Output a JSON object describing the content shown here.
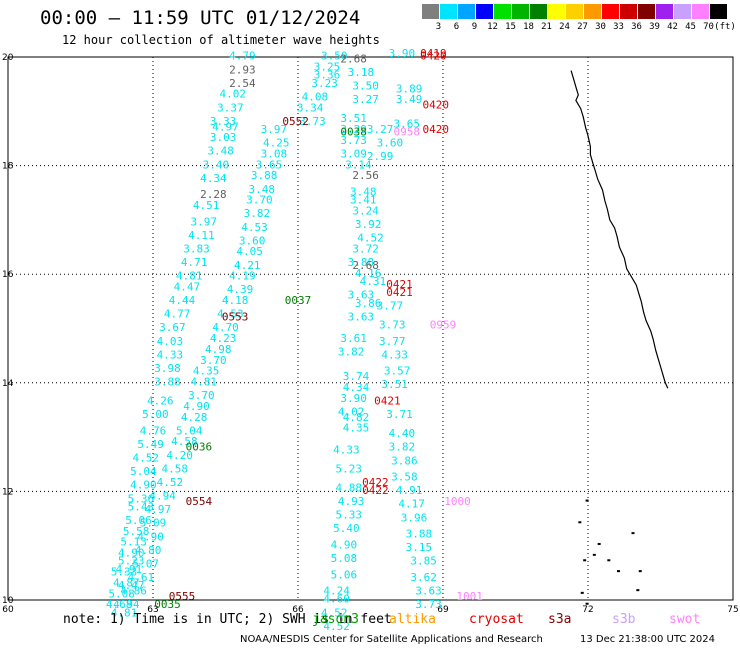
{
  "title": "00:00 – 11:59 UTC 01/12/2024",
  "subtitle": "12 hour collection of altimeter wave heights",
  "color_scale": {
    "unit_label": "(ft)",
    "bins": [
      {
        "label": "3",
        "color": "#7f7f7f"
      },
      {
        "label": "6",
        "color": "#00e5ff"
      },
      {
        "label": "9",
        "color": "#00a5ff"
      },
      {
        "label": "12",
        "color": "#0000ff"
      },
      {
        "label": "15",
        "color": "#00e000"
      },
      {
        "label": "18",
        "color": "#00b400"
      },
      {
        "label": "21",
        "color": "#008000"
      },
      {
        "label": "24",
        "color": "#ffff00"
      },
      {
        "label": "27",
        "color": "#ffd000"
      },
      {
        "label": "30",
        "color": "#ff9900"
      },
      {
        "label": "33",
        "color": "#ff0000"
      },
      {
        "label": "36",
        "color": "#cc0000"
      },
      {
        "label": "39",
        "color": "#800000"
      },
      {
        "label": "42",
        "color": "#a020f0"
      },
      {
        "label": "45",
        "color": "#c8a0ff"
      },
      {
        "label": "70",
        "color": "#ff80ff"
      },
      {
        "label": "",
        "color": "#000000"
      }
    ]
  },
  "axes": {
    "x_ticks": [
      "60",
      "63",
      "66",
      "69",
      "72",
      "75"
    ],
    "y_ticks": [
      "10",
      "12",
      "14",
      "16",
      "18",
      "20"
    ]
  },
  "colors": {
    "cyan": "#00e5ee",
    "gray": "#606060",
    "green": "#007f00",
    "maroon": "#7f0000",
    "red": "#e00000",
    "pink": "#ff80ff"
  },
  "tracks": [
    {
      "color": "cyan",
      "labels": [
        [
          "4.79",
          64.85,
          19.95
        ],
        [
          "4.02",
          64.65,
          19.25
        ],
        [
          "3.37",
          64.6,
          19.0
        ],
        [
          "3.33",
          64.45,
          18.75
        ],
        [
          "4.97",
          64.5,
          18.65
        ],
        [
          "3.03",
          64.45,
          18.45
        ],
        [
          "3.48",
          64.4,
          18.2
        ],
        [
          "3.40",
          64.3,
          17.95
        ],
        [
          "4.34",
          64.25,
          17.7
        ],
        [
          "4.51",
          64.1,
          17.2
        ],
        [
          "3.97",
          64.05,
          16.9
        ],
        [
          "4.11",
          64.0,
          16.65
        ],
        [
          "3.83",
          63.9,
          16.4
        ],
        [
          "4.71",
          63.85,
          16.15
        ],
        [
          "4.81",
          63.75,
          15.9
        ],
        [
          "4.47",
          63.7,
          15.7
        ],
        [
          "4.44",
          63.6,
          15.45
        ],
        [
          "4.77",
          63.5,
          15.2
        ],
        [
          "3.67",
          63.4,
          14.95
        ],
        [
          "4.03",
          63.35,
          14.7
        ],
        [
          "4.33",
          63.35,
          14.45
        ],
        [
          "3.98",
          63.3,
          14.2
        ],
        [
          "3.88",
          63.3,
          13.95
        ],
        [
          "4.26",
          63.15,
          13.6
        ],
        [
          "5.00",
          63.05,
          13.35
        ],
        [
          "4.76",
          63.0,
          13.05
        ],
        [
          "5.49",
          62.95,
          12.8
        ],
        [
          "4.52",
          62.85,
          12.55
        ],
        [
          "5.04",
          62.8,
          12.3
        ],
        [
          "4.90",
          62.8,
          12.05
        ],
        [
          "5.36",
          62.75,
          11.8
        ],
        [
          "5.43",
          62.75,
          11.65
        ],
        [
          "5.06",
          62.7,
          11.4
        ],
        [
          "5.58",
          62.65,
          11.2
        ],
        [
          "5.13",
          62.6,
          11.0
        ],
        [
          "4.90",
          62.55,
          10.8
        ],
        [
          "5.23",
          62.55,
          10.65
        ],
        [
          "4.91",
          62.5,
          10.5
        ],
        [
          "4.87",
          62.45,
          10.25
        ],
        [
          "5.08",
          62.35,
          10.05
        ],
        [
          "4.68",
          62.3,
          9.85
        ]
      ]
    },
    {
      "color": "gray",
      "labels": [
        [
          "2.93",
          64.85,
          19.7
        ],
        [
          "2.54",
          64.85,
          19.45
        ],
        [
          "2.28",
          64.25,
          17.4
        ]
      ]
    },
    {
      "color": "cyan",
      "labels": [
        [
          "3.97",
          65.5,
          18.6
        ],
        [
          "4.25",
          65.55,
          18.35
        ],
        [
          "3.08",
          65.5,
          18.15
        ],
        [
          "3.65",
          65.4,
          17.95
        ],
        [
          "3.88",
          65.3,
          17.75
        ],
        [
          "3.48",
          65.25,
          17.5
        ],
        [
          "3.70",
          65.2,
          17.3
        ],
        [
          "3.82",
          65.15,
          17.05
        ],
        [
          "4.53",
          65.1,
          16.8
        ],
        [
          "3.60",
          65.05,
          16.55
        ],
        [
          "4.05",
          65.0,
          16.35
        ],
        [
          "4.21",
          64.95,
          16.1
        ],
        [
          "4.19",
          64.85,
          15.9
        ],
        [
          "4.39",
          64.8,
          15.65
        ],
        [
          "4.18",
          64.7,
          15.45
        ],
        [
          "4.53",
          64.6,
          15.2
        ],
        [
          "4.70",
          64.5,
          14.95
        ],
        [
          "4.23",
          64.45,
          14.75
        ],
        [
          "4.98",
          64.35,
          14.55
        ],
        [
          "3.70",
          64.25,
          14.35
        ],
        [
          "4.35",
          64.1,
          14.15
        ],
        [
          "4.81",
          64.05,
          13.95
        ],
        [
          "3.70",
          64.0,
          13.7
        ],
        [
          "4.90",
          63.9,
          13.5
        ],
        [
          "4.28",
          63.85,
          13.3
        ],
        [
          "5.04",
          63.75,
          13.05
        ],
        [
          "4.58",
          63.65,
          12.85
        ],
        [
          "4.20",
          63.55,
          12.6
        ],
        [
          "4.58",
          63.45,
          12.35
        ],
        [
          "4.52",
          63.35,
          12.1
        ],
        [
          "4.94",
          63.2,
          11.85
        ],
        [
          "4.97",
          63.1,
          11.6
        ],
        [
          "5.09",
          63.0,
          11.35
        ],
        [
          "4.90",
          62.95,
          11.1
        ],
        [
          "4.80",
          62.9,
          10.85
        ],
        [
          "5.07",
          62.85,
          10.6
        ],
        [
          "4.61",
          62.75,
          10.35
        ],
        [
          "4.86",
          62.6,
          10.1
        ],
        [
          "4.94",
          62.45,
          9.85
        ],
        [
          "4.81",
          62.4,
          9.7
        ],
        [
          "4.47",
          62.55,
          10.2
        ],
        [
          "5.33",
          62.4,
          10.45
        ]
      ]
    },
    {
      "color": "cyan",
      "labels": [
        [
          "3.50",
          66.75,
          19.95
        ],
        [
          "3.25",
          66.6,
          19.75
        ],
        [
          "3.36",
          66.6,
          19.6
        ],
        [
          "3.23",
          66.55,
          19.45
        ],
        [
          "4.08",
          66.35,
          19.2
        ],
        [
          "3.34",
          66.25,
          19.0
        ],
        [
          "3.73",
          66.3,
          18.75
        ],
        [
          "3.51",
          67.15,
          18.8
        ],
        [
          "3.29",
          67.15,
          18.6
        ],
        [
          "3.73",
          67.15,
          18.4
        ],
        [
          "3.09",
          67.15,
          18.15
        ],
        [
          "3.14",
          67.25,
          17.95
        ],
        [
          "3.48",
          67.35,
          17.45
        ],
        [
          "3.41",
          67.35,
          17.3
        ],
        [
          "3.24",
          67.4,
          17.1
        ],
        [
          "3.92",
          67.45,
          16.85
        ],
        [
          "4.52",
          67.5,
          16.6
        ],
        [
          "3.72",
          67.4,
          16.4
        ],
        [
          "3.88",
          67.3,
          16.15
        ],
        [
          "4.16",
          67.45,
          15.95
        ],
        [
          "4.31",
          67.55,
          15.8
        ],
        [
          "3.63",
          67.3,
          15.55
        ],
        [
          "3.86",
          67.45,
          15.4
        ],
        [
          "3.63",
          67.3,
          15.15
        ],
        [
          "3.61",
          67.15,
          14.75
        ],
        [
          "3.82",
          67.1,
          14.5
        ],
        [
          "3.74",
          67.2,
          14.05
        ],
        [
          "4.34",
          67.2,
          13.85
        ],
        [
          "3.90",
          67.15,
          13.65
        ],
        [
          "4.02",
          67.1,
          13.4
        ],
        [
          "4.82",
          67.2,
          13.3
        ],
        [
          "4.35",
          67.2,
          13.1
        ],
        [
          "4.33",
          67.0,
          12.7
        ],
        [
          "5.23",
          67.05,
          12.35
        ],
        [
          "4.88",
          67.05,
          12.0
        ],
        [
          "4.93",
          67.1,
          11.75
        ],
        [
          "5.33",
          67.05,
          11.5
        ],
        [
          "5.40",
          67.0,
          11.25
        ],
        [
          "4.90",
          66.95,
          10.95
        ],
        [
          "5.08",
          66.95,
          10.7
        ],
        [
          "5.06",
          66.95,
          10.4
        ],
        [
          "4.24",
          66.8,
          10.1
        ],
        [
          "4.60",
          66.8,
          9.95
        ],
        [
          "4.52",
          66.75,
          9.7
        ],
        [
          "4.52",
          66.8,
          9.45
        ]
      ]
    },
    {
      "color": "gray",
      "labels": [
        [
          "2.68",
          67.15,
          19.9
        ],
        [
          "2.68",
          67.4,
          16.1
        ],
        [
          "2.56",
          67.4,
          17.75
        ]
      ]
    },
    {
      "color": "cyan",
      "labels": [
        [
          "3.18",
          67.3,
          19.65
        ],
        [
          "3.50",
          67.4,
          19.4
        ],
        [
          "3.27",
          67.4,
          19.15
        ],
        [
          "3.27",
          67.7,
          18.6
        ],
        [
          "3.60",
          67.9,
          18.35
        ],
        [
          "2.99",
          67.7,
          18.1
        ],
        [
          "3.77",
          67.9,
          15.35
        ],
        [
          "3.73",
          67.95,
          15.0
        ],
        [
          "3.77",
          67.95,
          14.7
        ],
        [
          "4.33",
          68.0,
          14.45
        ],
        [
          "3.57",
          68.05,
          14.15
        ],
        [
          "3.51",
          68.0,
          13.9
        ],
        [
          "3.71",
          68.1,
          13.35
        ],
        [
          "4.40",
          68.15,
          13.0
        ],
        [
          "3.82",
          68.15,
          12.75
        ],
        [
          "3.86",
          68.2,
          12.5
        ],
        [
          "3.58",
          68.2,
          12.2
        ],
        [
          "4.91",
          68.3,
          11.95
        ],
        [
          "4.17",
          68.35,
          11.7
        ],
        [
          "3.96",
          68.4,
          11.45
        ],
        [
          "3.88",
          68.5,
          11.15
        ],
        [
          "3.15",
          68.5,
          10.9
        ],
        [
          "3.85",
          68.6,
          10.65
        ],
        [
          "3.62",
          68.6,
          10.35
        ],
        [
          "3.63",
          68.7,
          10.1
        ],
        [
          "3.73",
          68.7,
          9.85
        ],
        [
          "3.89",
          68.3,
          19.35
        ],
        [
          "3.49",
          68.3,
          19.15
        ],
        [
          "3.65",
          68.25,
          18.7
        ],
        [
          "3.90",
          68.15,
          20.0
        ]
      ]
    },
    {
      "color": "green",
      "labels": [
        [
          "0037",
          66.0,
          15.45
        ],
        [
          "0036",
          63.95,
          12.75
        ],
        [
          "0035",
          63.3,
          9.85
        ],
        [
          "0038",
          67.15,
          18.55
        ]
      ]
    },
    {
      "color": "maroon",
      "labels": [
        [
          "0552",
          65.95,
          18.75
        ],
        [
          "0553",
          64.7,
          15.15
        ],
        [
          "0554",
          63.95,
          11.75
        ],
        [
          "0555",
          63.6,
          10.0
        ]
      ]
    },
    {
      "color": "red",
      "labels": [
        [
          "0419",
          68.8,
          20.0
        ],
        [
          "0420",
          68.8,
          19.95
        ],
        [
          "0420",
          68.85,
          19.05
        ],
        [
          "0420",
          68.85,
          18.6
        ],
        [
          "0421",
          68.1,
          15.75
        ],
        [
          "0421",
          68.1,
          15.6
        ],
        [
          "0421",
          67.85,
          13.6
        ],
        [
          "0422",
          67.6,
          12.1
        ],
        [
          "0422",
          67.6,
          11.95
        ]
      ]
    },
    {
      "color": "pink",
      "labels": [
        [
          "0958",
          68.25,
          18.55
        ],
        [
          "0959",
          69.0,
          15.0
        ],
        [
          "1000",
          69.3,
          11.75
        ],
        [
          "1001",
          69.55,
          10.0
        ]
      ]
    }
  ],
  "coastline": [
    [
      71.65,
      19.75
    ],
    [
      71.7,
      19.6
    ],
    [
      71.75,
      19.45
    ],
    [
      71.8,
      19.3
    ],
    [
      71.75,
      19.2
    ],
    [
      71.85,
      19.05
    ],
    [
      71.9,
      18.9
    ],
    [
      71.95,
      18.7
    ],
    [
      72.0,
      18.55
    ],
    [
      72.05,
      18.35
    ],
    [
      72.05,
      18.2
    ],
    [
      72.1,
      18.05
    ],
    [
      72.15,
      17.9
    ],
    [
      72.2,
      17.75
    ],
    [
      72.3,
      17.55
    ],
    [
      72.35,
      17.35
    ],
    [
      72.4,
      17.2
    ],
    [
      72.45,
      17.0
    ],
    [
      72.55,
      16.85
    ],
    [
      72.6,
      16.7
    ],
    [
      72.65,
      16.5
    ],
    [
      72.75,
      16.3
    ],
    [
      72.8,
      16.1
    ],
    [
      72.9,
      15.95
    ],
    [
      73.0,
      15.8
    ],
    [
      73.05,
      15.65
    ],
    [
      73.1,
      15.5
    ],
    [
      73.15,
      15.3
    ],
    [
      73.2,
      15.15
    ],
    [
      73.3,
      14.95
    ],
    [
      73.35,
      14.8
    ],
    [
      73.4,
      14.6
    ],
    [
      73.45,
      14.45
    ],
    [
      73.5,
      14.3
    ],
    [
      73.55,
      14.15
    ],
    [
      73.6,
      14.0
    ],
    [
      73.65,
      13.9
    ]
  ],
  "islands": [
    [
      71.95,
      11.85
    ],
    [
      71.8,
      11.45
    ],
    [
      72.9,
      11.25
    ],
    [
      72.2,
      11.05
    ],
    [
      72.1,
      10.85
    ],
    [
      71.9,
      10.75
    ],
    [
      73.05,
      10.55
    ],
    [
      72.4,
      10.75
    ],
    [
      72.6,
      10.55
    ],
    [
      71.85,
      10.15
    ],
    [
      71.95,
      9.95
    ],
    [
      73.0,
      10.2
    ]
  ],
  "note": {
    "text": "note: 1) Time is in UTC; 2) SWH is in feet",
    "sat_labels": [
      {
        "text": "jason3",
        "color": "#00a000"
      },
      {
        "text": "altika",
        "color": "#ff9900"
      },
      {
        "text": "cryosat",
        "color": "#e00000"
      },
      {
        "text": "s3a",
        "color": "#800000"
      },
      {
        "text": "s3b",
        "color": "#c8a0ff"
      },
      {
        "text": "swot",
        "color": "#ff80ff"
      }
    ]
  },
  "credit": "NOAA/NESDIS Center for Satellite Applications and Research",
  "timestamp": "13 Dec 21:38:00 UTC 2024"
}
